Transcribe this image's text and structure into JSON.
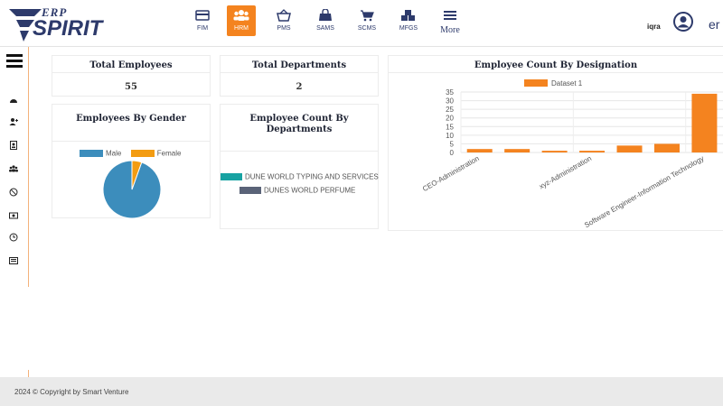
{
  "brand": {
    "top": "ERP",
    "main": "SPIRIT"
  },
  "modules": [
    {
      "label": "FIM",
      "icon": "card-icon"
    },
    {
      "label": "HRM",
      "icon": "people-icon",
      "active": true
    },
    {
      "label": "PMS",
      "icon": "basket-icon"
    },
    {
      "label": "SAMS",
      "icon": "bag-icon"
    },
    {
      "label": "SCMS",
      "icon": "cart-icon"
    },
    {
      "label": "MFGS",
      "icon": "boxes-icon"
    },
    {
      "label": "More",
      "icon": "menu-icon"
    }
  ],
  "user": {
    "name": "iqra",
    "lang": "er"
  },
  "cards": {
    "total_employees": {
      "title": "Total Employees",
      "value": "55"
    },
    "total_departments": {
      "title": "Total Departments",
      "value": "2"
    },
    "gender": {
      "title": "Employees By Gender"
    },
    "by_departments": {
      "title": "Employee Count By Departments"
    },
    "by_designation": {
      "title": "Employee Count By Designation"
    }
  },
  "chart_data": [
    {
      "type": "pie",
      "title": "Employees By Gender",
      "categories": [
        "Male",
        "Female"
      ],
      "values": [
        52,
        3
      ],
      "colors": [
        "#3c8dbc",
        "#f39c12"
      ],
      "legend": "top"
    },
    {
      "type": "bar",
      "title": "Employee Count By Departments",
      "categories": [
        "DUNE WORLD TYPING AND SERVICES",
        "DUNES WORLD PERFUME"
      ],
      "colors": [
        "#17a2a2",
        "#5a6378"
      ],
      "legend": "top"
    },
    {
      "type": "bar",
      "title": "Employee Count By Designation",
      "series": [
        {
          "name": "Dataset 1",
          "values": [
            2,
            2,
            1,
            1,
            4,
            5,
            34
          ]
        }
      ],
      "categories": [
        "CEO-Administration",
        "",
        "",
        "xyz-Administration",
        "",
        "",
        "Software Engineer-Information Technology"
      ],
      "ylim": [
        0,
        35
      ],
      "yticks": [
        0,
        5,
        10,
        15,
        20,
        25,
        30,
        35
      ],
      "color": "#f4831f",
      "grid": true,
      "legend": "top"
    }
  ],
  "footer": {
    "text": "2024 © Copyright by Smart Venture"
  }
}
